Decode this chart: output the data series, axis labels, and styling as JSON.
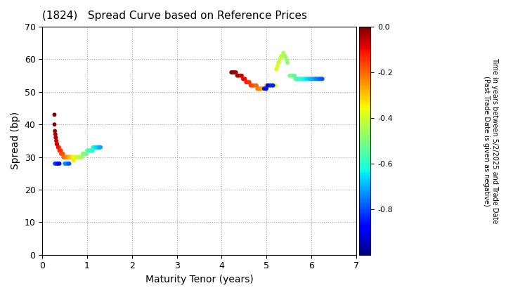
{
  "title": "(1824)   Spread Curve based on Reference Prices",
  "xlabel": "Maturity Tenor (years)",
  "ylabel": "Spread (bp)",
  "colorbar_label_line1": "Time in years between 5/2/2025 and Trade Date",
  "colorbar_label_line2": "(Past Trade Date is given as negative)",
  "xlim": [
    0,
    7
  ],
  "ylim": [
    0,
    70
  ],
  "xticks": [
    0,
    1,
    2,
    3,
    4,
    5,
    6,
    7
  ],
  "yticks": [
    0,
    10,
    20,
    30,
    40,
    50,
    60,
    70
  ],
  "cmap": "jet",
  "vmin": -1.0,
  "vmax": 0.0,
  "colorbar_ticks": [
    0.0,
    -0.2,
    -0.4,
    -0.6,
    -0.8
  ],
  "cluster1_tenors": [
    0.27,
    0.27,
    0.28,
    0.29,
    0.3,
    0.3,
    0.31,
    0.32,
    0.33,
    0.35,
    0.36,
    0.37,
    0.38,
    0.4,
    0.41,
    0.42,
    0.44,
    0.45,
    0.46,
    0.47,
    0.48,
    0.5,
    0.52,
    0.53,
    0.55,
    0.57,
    0.58,
    0.6,
    0.6,
    0.62,
    0.63,
    0.65,
    0.67,
    0.68,
    0.7,
    0.7,
    0.72,
    0.73,
    0.75,
    0.77,
    0.78,
    0.8,
    0.82,
    0.83,
    0.85,
    0.87,
    0.88,
    0.9,
    0.92,
    0.93,
    0.95,
    0.97,
    0.98,
    1.0,
    1.02,
    1.03,
    1.05,
    1.07,
    1.08,
    1.1,
    1.12,
    1.13,
    1.15,
    1.17,
    1.18,
    1.2,
    1.22,
    1.23,
    1.25,
    1.27,
    1.28,
    1.3,
    0.28,
    0.3,
    0.33,
    0.35,
    0.38,
    0.5,
    0.52,
    0.55,
    0.58,
    0.6
  ],
  "cluster1_spreads": [
    43,
    40,
    38,
    37,
    36,
    36,
    35,
    34,
    34,
    33,
    33,
    33,
    32,
    32,
    32,
    31,
    31,
    31,
    31,
    30,
    30,
    30,
    30,
    30,
    30,
    30,
    30,
    30,
    30,
    30,
    30,
    30,
    30,
    30,
    29,
    30,
    30,
    30,
    30,
    30,
    30,
    30,
    30,
    30,
    30,
    30,
    30,
    31,
    31,
    31,
    31,
    31,
    31,
    32,
    32,
    32,
    32,
    32,
    32,
    32,
    32,
    33,
    33,
    33,
    33,
    33,
    33,
    33,
    33,
    33,
    33,
    33,
    28,
    28,
    28,
    28,
    28,
    28,
    28,
    28,
    28,
    28
  ],
  "cluster1_colors": [
    0.0,
    -0.01,
    -0.02,
    -0.03,
    -0.04,
    -0.05,
    -0.06,
    -0.07,
    -0.08,
    -0.09,
    -0.1,
    -0.11,
    -0.12,
    -0.13,
    -0.14,
    -0.15,
    -0.16,
    -0.17,
    -0.18,
    -0.19,
    -0.2,
    -0.21,
    -0.22,
    -0.23,
    -0.24,
    -0.25,
    -0.26,
    -0.27,
    -0.28,
    -0.29,
    -0.3,
    -0.31,
    -0.32,
    -0.33,
    -0.34,
    -0.35,
    -0.36,
    -0.37,
    -0.38,
    -0.39,
    -0.4,
    -0.41,
    -0.42,
    -0.43,
    -0.44,
    -0.45,
    -0.46,
    -0.47,
    -0.48,
    -0.49,
    -0.5,
    -0.51,
    -0.52,
    -0.53,
    -0.54,
    -0.55,
    -0.56,
    -0.57,
    -0.58,
    -0.59,
    -0.6,
    -0.61,
    -0.62,
    -0.63,
    -0.64,
    -0.65,
    -0.66,
    -0.67,
    -0.68,
    -0.69,
    -0.7,
    -0.71,
    -0.8,
    -0.82,
    -0.84,
    -0.86,
    -0.88,
    -0.72,
    -0.74,
    -0.76,
    -0.78,
    -0.79
  ],
  "cluster2_tenors": [
    4.22,
    4.25,
    4.28,
    4.32,
    4.35,
    4.38,
    4.42,
    4.45,
    4.48,
    4.5,
    4.52,
    4.55,
    4.58,
    4.6,
    4.62,
    4.65,
    4.68,
    4.7,
    4.72,
    4.75,
    4.78,
    4.8,
    4.82,
    4.85,
    4.87,
    4.9,
    4.92,
    4.95,
    4.97,
    5.0,
    5.02,
    5.05,
    5.07,
    5.1,
    5.12,
    5.15,
    5.17,
    5.2,
    5.22,
    5.25,
    5.27,
    5.3,
    5.33,
    5.35,
    5.38,
    5.4,
    5.42,
    5.45,
    5.47,
    5.52,
    5.55,
    5.58,
    5.6,
    5.63,
    5.65,
    5.68,
    5.7,
    5.72,
    5.75,
    5.78,
    5.8,
    5.83,
    5.85,
    5.88,
    5.9,
    5.92,
    5.95,
    5.98,
    6.0,
    6.03,
    6.05,
    6.08,
    6.1,
    6.12,
    6.15,
    6.18,
    6.2,
    6.23,
    6.25,
    5.05,
    5.08,
    5.1,
    5.13,
    5.15,
    4.95,
    4.98,
    5.0,
    5.03
  ],
  "cluster2_spreads": [
    56,
    56,
    56,
    56,
    55,
    55,
    55,
    55,
    54,
    54,
    54,
    53,
    53,
    53,
    53,
    52,
    52,
    52,
    52,
    52,
    52,
    51,
    51,
    51,
    51,
    51,
    51,
    51,
    51,
    52,
    52,
    52,
    52,
    52,
    52,
    52,
    52,
    52,
    57,
    58,
    59,
    60,
    61,
    61,
    62,
    61,
    61,
    60,
    59,
    55,
    55,
    55,
    55,
    55,
    54,
    54,
    54,
    54,
    54,
    54,
    54,
    54,
    54,
    54,
    54,
    54,
    54,
    54,
    54,
    54,
    54,
    54,
    54,
    54,
    54,
    54,
    54,
    54,
    54,
    52,
    52,
    52,
    52,
    52,
    51,
    51,
    51,
    52
  ],
  "cluster2_colors": [
    0.0,
    -0.01,
    -0.02,
    -0.03,
    -0.04,
    -0.05,
    -0.06,
    -0.07,
    -0.08,
    -0.09,
    -0.1,
    -0.11,
    -0.12,
    -0.13,
    -0.14,
    -0.15,
    -0.16,
    -0.17,
    -0.18,
    -0.19,
    -0.2,
    -0.21,
    -0.22,
    -0.23,
    -0.24,
    -0.25,
    -0.26,
    -0.27,
    -0.28,
    -0.29,
    -0.3,
    -0.31,
    -0.32,
    -0.33,
    -0.34,
    -0.35,
    -0.36,
    -0.37,
    -0.38,
    -0.39,
    -0.4,
    -0.41,
    -0.42,
    -0.43,
    -0.44,
    -0.45,
    -0.46,
    -0.47,
    -0.48,
    -0.5,
    -0.51,
    -0.52,
    -0.53,
    -0.54,
    -0.55,
    -0.56,
    -0.57,
    -0.58,
    -0.59,
    -0.6,
    -0.61,
    -0.62,
    -0.63,
    -0.64,
    -0.65,
    -0.66,
    -0.67,
    -0.68,
    -0.69,
    -0.7,
    -0.71,
    -0.72,
    -0.73,
    -0.74,
    -0.75,
    -0.76,
    -0.77,
    -0.78,
    -0.79,
    -0.8,
    -0.81,
    -0.82,
    -0.83,
    -0.84,
    -0.85,
    -0.86,
    -0.87,
    -0.88
  ]
}
